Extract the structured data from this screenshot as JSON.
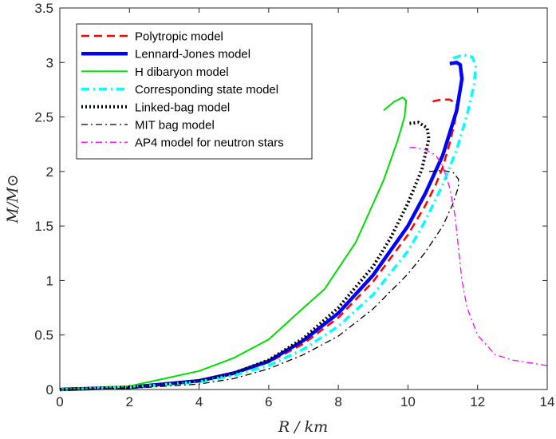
{
  "chart_data": {
    "type": "line",
    "xlabel": "R / km",
    "ylabel": "M/M⊙",
    "xlim": [
      0,
      14
    ],
    "ylim": [
      0,
      3.5
    ],
    "xticks": [
      0,
      2,
      4,
      6,
      8,
      10,
      12,
      14
    ],
    "yticks": [
      0,
      0.5,
      1,
      1.5,
      2,
      2.5,
      3,
      3.5
    ],
    "tick_labels_x": [
      "0",
      "2",
      "4",
      "6",
      "8",
      "10",
      "12",
      "14"
    ],
    "tick_labels_y": [
      "0",
      "0.5",
      "1",
      "1.5",
      "2",
      "2.5",
      "3",
      "3.5"
    ],
    "grid": false,
    "legend_position": "top-left",
    "series": [
      {
        "name": "Polytropic model",
        "color": "#ff0000",
        "style": "dashed",
        "x": [
          0,
          2,
          4,
          5,
          6,
          7,
          8,
          9,
          10,
          10.5,
          10.8,
          11.0,
          11.2,
          11.35,
          11.4,
          11.2,
          11.0,
          10.8,
          10.6
        ],
        "y": [
          0,
          0.02,
          0.08,
          0.15,
          0.25,
          0.42,
          0.66,
          0.99,
          1.42,
          1.69,
          1.88,
          2.04,
          2.26,
          2.46,
          2.62,
          2.66,
          2.66,
          2.65,
          2.63
        ]
      },
      {
        "name": "Lennard-Jones model",
        "color": "#0000ff",
        "style": "solid-thick",
        "x": [
          0,
          2,
          4,
          5,
          6,
          7,
          8,
          9,
          10,
          10.5,
          11.0,
          11.4,
          11.55,
          11.5,
          11.4,
          11.2
        ],
        "y": [
          0,
          0.02,
          0.08,
          0.15,
          0.26,
          0.45,
          0.7,
          1.05,
          1.5,
          1.8,
          2.15,
          2.56,
          2.85,
          2.98,
          3.0,
          2.99
        ]
      },
      {
        "name": "H dibaryon model",
        "color": "#00dd00",
        "style": "solid",
        "x": [
          0,
          2,
          4,
          5,
          6,
          7,
          7.6,
          8.5,
          9.3,
          9.7,
          9.9,
          9.95,
          9.85,
          9.6,
          9.3
        ],
        "y": [
          0,
          0.03,
          0.17,
          0.29,
          0.46,
          0.75,
          0.92,
          1.35,
          1.92,
          2.28,
          2.5,
          2.65,
          2.68,
          2.64,
          2.56
        ]
      },
      {
        "name": "Corresponding state model",
        "color": "#00ffff",
        "style": "dash-dot-thick",
        "x": [
          0,
          2,
          4,
          5,
          6,
          7,
          8,
          9,
          10,
          10.5,
          11.0,
          11.4,
          11.7,
          11.9,
          11.95,
          11.85,
          11.6,
          11.3
        ],
        "y": [
          0,
          0.02,
          0.07,
          0.13,
          0.22,
          0.37,
          0.58,
          0.87,
          1.27,
          1.55,
          1.88,
          2.2,
          2.52,
          2.8,
          2.97,
          3.05,
          3.07,
          3.04
        ]
      },
      {
        "name": "Linked-bag model",
        "color": "#000000",
        "style": "dotted-thick",
        "x": [
          0,
          2,
          4,
          5,
          6,
          7,
          8,
          9,
          9.5,
          10,
          10.4,
          10.6,
          10.55,
          10.3,
          10.0
        ],
        "y": [
          0,
          0.02,
          0.08,
          0.15,
          0.27,
          0.47,
          0.75,
          1.13,
          1.39,
          1.71,
          2.02,
          2.3,
          2.4,
          2.45,
          2.44
        ]
      },
      {
        "name": "MIT bag model",
        "color": "#000000",
        "style": "dash-dot",
        "x": [
          0,
          2,
          4,
          5,
          6,
          7,
          8,
          9,
          10,
          10.5,
          11.0,
          11.3,
          11.45,
          11.45,
          11.3,
          11.0,
          10.6
        ],
        "y": [
          0,
          0.01,
          0.05,
          0.1,
          0.19,
          0.32,
          0.49,
          0.74,
          1.06,
          1.26,
          1.5,
          1.71,
          1.86,
          1.93,
          1.99,
          2.01,
          2.0
        ]
      },
      {
        "name": "AP4 model for neutron stars",
        "color": "#ff00ff",
        "style": "dash-dot",
        "x": [
          14,
          13,
          12.5,
          12,
          11.7,
          11.55,
          11.45,
          11.35,
          11.2,
          11.0,
          10.8,
          10.5,
          10.2,
          10.0
        ],
        "y": [
          0.22,
          0.27,
          0.32,
          0.5,
          0.75,
          1.0,
          1.3,
          1.6,
          1.85,
          2.05,
          2.15,
          2.2,
          2.22,
          2.22
        ]
      }
    ]
  }
}
